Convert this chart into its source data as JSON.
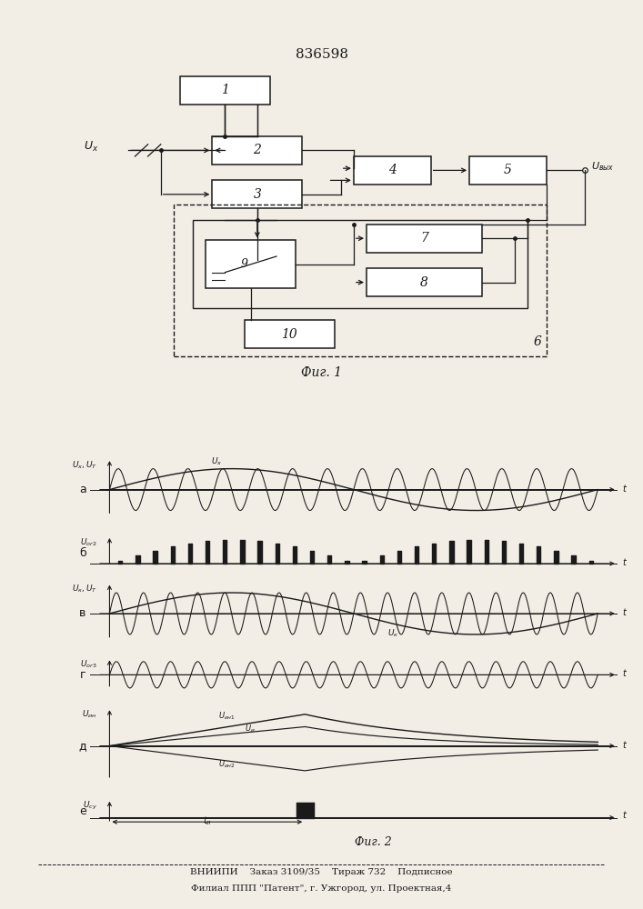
{
  "patent_number": "836598",
  "fig1_label": "Фиг. 1",
  "fig2_label": "Фиг. 2",
  "footer_line1": "ВНИИПИ    Заказ 3109/35    Тираж 732    Подписное",
  "footer_line2": "Филиал ППП \"Патент\", г. Ужгород, ул. Проектная,4",
  "bg_color": "#f2ede5",
  "line_color": "#1a1a1a"
}
